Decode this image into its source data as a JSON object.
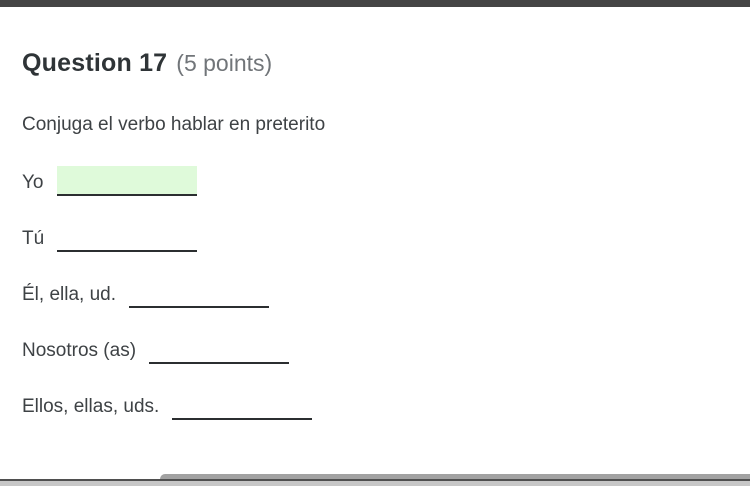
{
  "question": {
    "title": "Question 17",
    "points": "(5 points)",
    "prompt": "Conjuga el verbo hablar en preterito",
    "blanks": [
      {
        "label": "Yo",
        "value": "",
        "highlighted": true
      },
      {
        "label": "Tú",
        "value": "",
        "highlighted": false
      },
      {
        "label": "Él, ella, ud.",
        "value": "",
        "highlighted": false
      },
      {
        "label": "Nosotros (as)",
        "value": "",
        "highlighted": false
      },
      {
        "label": "Ellos, ellas, uds.",
        "value": "",
        "highlighted": false
      }
    ]
  },
  "colors": {
    "top_bar": "#454545",
    "highlight_green": "#dffada",
    "underline": "#2b2e30",
    "title_text": "#2f3437",
    "points_text": "#717579",
    "body_text": "#3e4245",
    "scrollbar_thumb": "#a2a2a2",
    "scrollbar_line": "#4f4f4f",
    "scrollbar_track": "#c7c7c7"
  }
}
